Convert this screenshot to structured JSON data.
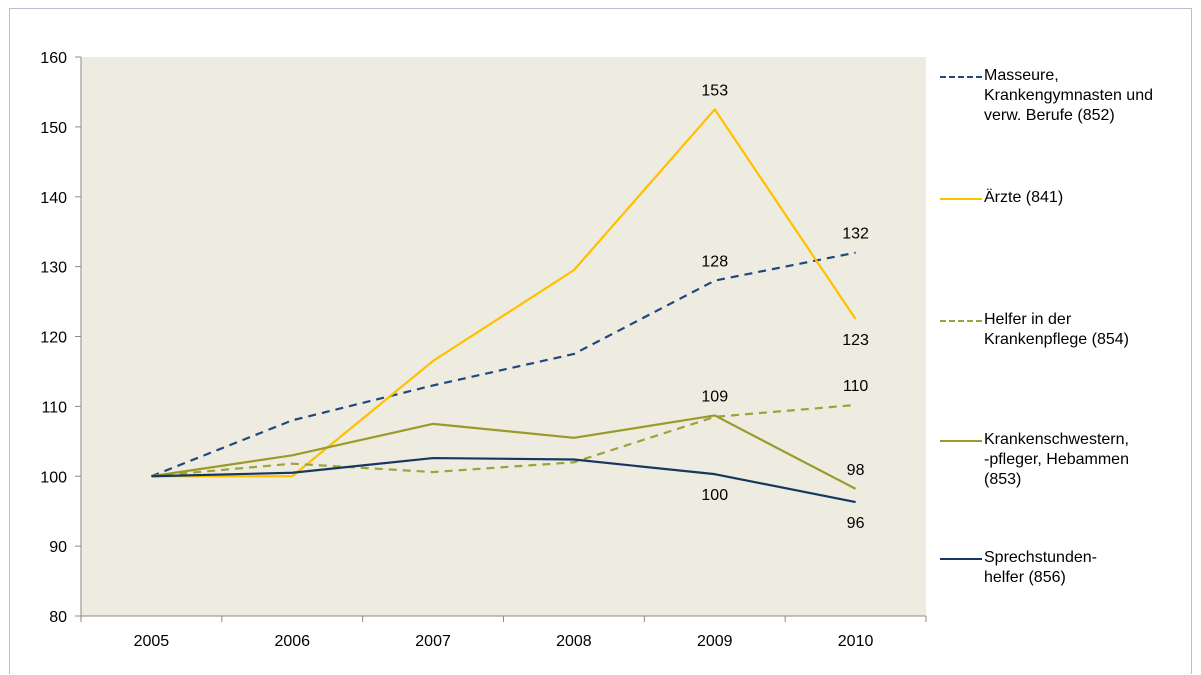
{
  "chart_data": {
    "type": "line",
    "title": "",
    "xlabel": "",
    "ylabel": "",
    "x": [
      "2005",
      "2006",
      "2007",
      "2008",
      "2009",
      "2010"
    ],
    "ylim": [
      80,
      160
    ],
    "yticks": [
      "80",
      "90",
      "100",
      "110",
      "120",
      "130",
      "140",
      "150",
      "160"
    ],
    "plot_background": "#eeecE1",
    "legend_position": "right",
    "series": [
      {
        "name": "Masseure, Krankengymnasten und verw. Berufe (852)",
        "label_lines": [
          "Masseure,",
          "Krankengymnasten und",
          "verw. Berufe  (852)"
        ],
        "color": "#1f497d",
        "dash": "dashed",
        "values": [
          100,
          108,
          113,
          117.5,
          128,
          132
        ],
        "data_labels": [
          {
            "index": 4,
            "text": "128",
            "pos": "above"
          },
          {
            "index": 5,
            "text": "132",
            "pos": "above"
          }
        ]
      },
      {
        "name": "Ärzte (841)",
        "label_lines": [
          "Ärzte (841)"
        ],
        "color": "#ffc000",
        "dash": "solid",
        "values": [
          100,
          100,
          116.5,
          129.5,
          152.5,
          122.5
        ],
        "data_labels": [
          {
            "index": 4,
            "text": "153",
            "pos": "above"
          },
          {
            "index": 5,
            "text": "123",
            "pos": "below"
          }
        ]
      },
      {
        "name": "Helfer in der Krankenpflege (854)",
        "label_lines": [
          "Helfer in der",
          "Krankenpflege (854)"
        ],
        "color": "#9ba33b",
        "dash": "dashed",
        "values": [
          100,
          101.8,
          100.6,
          102,
          108.5,
          110.2
        ],
        "data_labels": [
          {
            "index": 5,
            "text": "110",
            "pos": "above"
          }
        ]
      },
      {
        "name": "Krankenschwestern, -pfleger, Hebammen (853)",
        "label_lines": [
          "Krankenschwestern,",
          " -pfleger, Hebammen",
          "(853)"
        ],
        "color": "#9a9a2a",
        "dash": "solid",
        "values": [
          100,
          103,
          107.5,
          105.5,
          108.7,
          98.2
        ],
        "data_labels": [
          {
            "index": 4,
            "text": "109",
            "pos": "above"
          },
          {
            "index": 5,
            "text": "98",
            "pos": "above"
          }
        ]
      },
      {
        "name": "Sprechstundenhelfer (856)",
        "label_lines": [
          "Sprechstunden-",
          "helfer (856)"
        ],
        "color": "#17375e",
        "dash": "solid",
        "values": [
          100,
          100.5,
          102.6,
          102.4,
          100.3,
          96.3
        ],
        "data_labels": [
          {
            "index": 4,
            "text": "100",
            "pos": "below"
          },
          {
            "index": 5,
            "text": "96",
            "pos": "below"
          }
        ]
      }
    ]
  }
}
